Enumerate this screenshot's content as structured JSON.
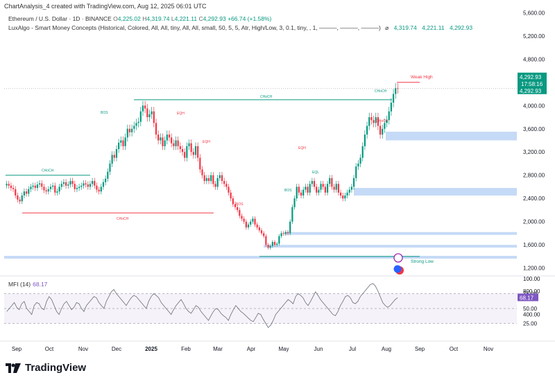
{
  "header": {
    "title": "ChartAnalysis_4 created with TradingView.com, Aug 12, 2025 06:01 UTC"
  },
  "symbol": {
    "name": "Ethereum / U.S. Dollar · 1D · BINANCE",
    "open_label": "O",
    "open": "4,225.02",
    "high_label": "H",
    "high": "4,319.74",
    "low_label": "L",
    "low": "4,221.11",
    "close_label": "C",
    "close": "4,292.93",
    "change": "+66.74 (+1.58%)"
  },
  "indicator": {
    "text": "LuxAlgo - Smart Money Concepts (Historical, Colored, All, All, tiny, All, All, small, 50, 5, 5, Atr, High/Low, 3, 0.1, tiny, , 1, ———, ———, ———)",
    "icon": "eye-slash-icon",
    "values": [
      "4,319.74",
      "4,221.11",
      "4,292.93"
    ]
  },
  "price_axis": {
    "ticks": [
      "5,600.00",
      "5,200.00",
      "4,800.00",
      "4,000.00",
      "3,600.00",
      "3,200.00",
      "2,800.00",
      "2,400.00",
      "2,000.00",
      "1,600.00",
      "1,200.00",
      "800.00",
      "400.00"
    ],
    "last_price": "4,292.93",
    "countdown": "17:58:16",
    "last_price_2": "4,292.93"
  },
  "mfi": {
    "label": "MFI (14)",
    "value": "68.17",
    "ticks": [
      "100.00",
      "75.00",
      "50.00",
      "25.00"
    ]
  },
  "time_axis": [
    "Sep",
    "Oct",
    "Nov",
    "Dec",
    "2025",
    "Feb",
    "Mar",
    "Apr",
    "May",
    "Jun",
    "Jul",
    "Aug",
    "Sep",
    "Oct",
    "Nov"
  ],
  "annotations": {
    "choch": "CHoCH",
    "bos": "BOS",
    "eqh": "EQH",
    "eql": "EQL",
    "weak_high": "Weak High",
    "strong_low": "Strong Low"
  },
  "colors": {
    "up": "#089981",
    "down": "#f23645",
    "zone": "#bbd4f5",
    "mfi": "#7e57c2",
    "accent": "#2962ff"
  },
  "chart_data": {
    "type": "candlestick",
    "title": "Ethereum / U.S. Dollar · 1D · BINANCE",
    "y_scale": "linear",
    "ylim": [
      1100,
      5700
    ],
    "x_range": [
      "2024-08-20",
      "2025-11-30"
    ],
    "series": [
      {
        "closes": [
          2650,
          2620,
          2580,
          2560,
          2450,
          2380,
          2350,
          2450,
          2520,
          2480,
          2560,
          2600,
          2620,
          2580,
          2640,
          2660,
          2600,
          2540,
          2520,
          2560,
          2600,
          2620,
          2500,
          2520,
          2600,
          2650,
          2680,
          2620,
          2640,
          2700,
          2650,
          2560,
          2580,
          2600,
          2620,
          2660,
          2640,
          2600,
          2650,
          2700,
          2620,
          2550,
          2520,
          2600,
          2680,
          2740,
          2860,
          3000,
          3150,
          3100,
          3250,
          3360,
          3400,
          3300,
          3450,
          3600,
          3540,
          3600,
          3650,
          3700,
          3720,
          3900,
          4000,
          3950,
          3800,
          3850,
          3900,
          3700,
          3500,
          3400,
          3450,
          3300,
          3400,
          3500,
          3450,
          3350,
          3300,
          3400,
          3300,
          3250,
          3200,
          3100,
          3300,
          3350,
          3200,
          3150,
          3300,
          3100,
          2900,
          2800,
          2700,
          2750,
          2700,
          2800,
          2650,
          2600,
          2750,
          2800,
          2700,
          2650,
          2600,
          2500,
          2400,
          2300,
          2250,
          2200,
          2100,
          2050,
          2000,
          1900,
          1950,
          2000,
          2050,
          1950,
          1900,
          1850,
          1800,
          1750,
          1600,
          1550,
          1580,
          1650,
          1600,
          1620,
          1750,
          1800,
          1790,
          1820,
          1800,
          2000,
          2250,
          2400,
          2600,
          2500,
          2450,
          2550,
          2600,
          2500,
          2650,
          2700,
          2600,
          2500,
          2550,
          2650,
          2600,
          2500,
          2650,
          2750,
          2600,
          2550,
          2650,
          2500,
          2450,
          2400,
          2450,
          2500,
          2550,
          2600,
          2750,
          2950,
          3000,
          3100,
          3300,
          3500,
          3650,
          3800,
          3750,
          3700,
          3800,
          3650,
          3500,
          3600,
          3700,
          3750,
          3900,
          4050,
          4200,
          4300,
          4292.93
        ]
      }
    ],
    "annotations": {
      "horizontal_levels": [
        {
          "label": "CHoCH",
          "price": 4100,
          "color": "#089981"
        },
        {
          "label": "CHoCH",
          "price": 2150,
          "color": "#f23645"
        },
        {
          "label": "CHoCH",
          "price": 2800,
          "color": "#089981"
        },
        {
          "label": "Weak High",
          "price": 4400,
          "color": "#f23645"
        },
        {
          "label": "Strong Low",
          "price": 1400,
          "color": "#089981"
        }
      ],
      "zones": [
        [
          3400,
          3550
        ],
        [
          2450,
          2580
        ],
        [
          1780,
          1820
        ],
        [
          1560,
          1600
        ],
        [
          1370,
          1410
        ]
      ]
    }
  },
  "mfi_data": {
    "type": "line",
    "ylim": [
      0,
      100
    ],
    "band": [
      25,
      75
    ],
    "values": [
      45,
      50,
      55,
      60,
      52,
      48,
      58,
      62,
      50,
      45,
      40,
      55,
      60,
      58,
      50,
      48,
      62,
      70,
      65,
      55,
      45,
      40,
      50,
      58,
      62,
      55,
      48,
      52,
      60,
      58,
      50,
      45,
      55,
      60,
      65,
      70,
      68,
      60,
      55,
      50,
      62,
      70,
      78,
      82,
      75,
      70,
      65,
      60,
      55,
      62,
      68,
      72,
      70,
      65,
      60,
      55,
      50,
      62,
      70,
      75,
      72,
      68,
      60,
      55,
      50,
      45,
      40,
      48,
      55,
      60,
      65,
      58,
      50,
      45,
      42,
      48,
      55,
      52,
      45,
      40,
      35,
      30,
      38,
      45,
      50,
      48,
      42,
      38,
      35,
      30,
      40,
      48,
      55,
      50,
      45,
      42,
      38,
      34,
      30,
      28,
      35,
      42,
      40,
      32,
      25,
      18,
      22,
      30,
      40,
      45,
      50,
      55,
      60,
      65,
      62,
      58,
      70,
      75,
      72,
      68,
      60,
      55,
      62,
      70,
      78,
      72,
      65,
      60,
      55,
      50,
      45,
      40,
      38,
      45,
      55,
      62,
      70,
      72,
      68,
      60,
      58,
      62,
      70,
      75,
      80,
      85,
      90,
      92,
      88,
      80,
      70,
      60,
      55,
      52,
      55,
      60,
      65,
      68.17
    ]
  }
}
